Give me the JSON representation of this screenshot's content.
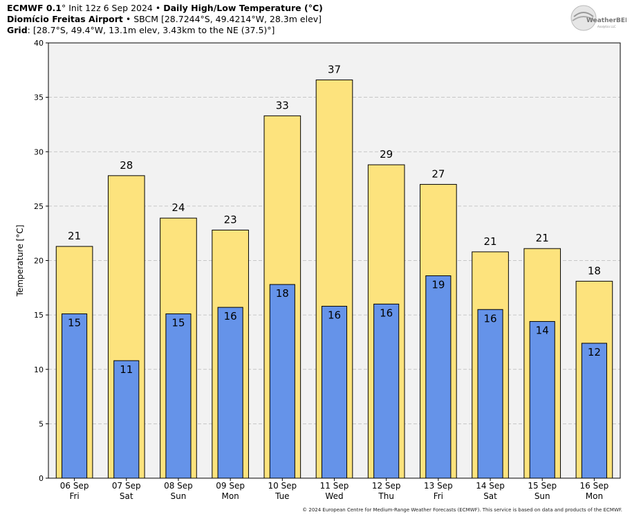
{
  "header": {
    "model": "ECMWF 0.1",
    "deg": "°",
    "init": "Init 12z 6 Sep 2024",
    "bullet": "•",
    "product": "Daily High/Low Temperature (°C)",
    "station_name": "Diomício Freitas Airport",
    "station_info": "SBCM [28.7244°S, 49.4214°W, 28.3m elev]",
    "grid_label": "Grid",
    "grid_info": ": [28.7°S, 49.4°W, 13.1m elev, 3.43km to the NE (37.5)°]"
  },
  "logo": {
    "text": "WeatherBELL",
    "small": "Analytics LLC"
  },
  "footer": "© 2024 European Centre for Medium-Range Weather Forecasts (ECMWF). This service is based on data and products of the ECMWF.",
  "colors": {
    "high": "#fde37d",
    "low": "#6593e9",
    "plot_bg": "#f2f2f2",
    "grid": "#b8b8b8"
  },
  "chart_data": {
    "type": "bar",
    "ylabel": "Temperature [°C]",
    "ylim": [
      0,
      40
    ],
    "yticks": [
      0,
      5,
      10,
      15,
      20,
      25,
      30,
      35,
      40
    ],
    "grid": true,
    "categories": [
      "06 Sep",
      "07 Sep",
      "08 Sep",
      "09 Sep",
      "10 Sep",
      "11 Sep",
      "12 Sep",
      "13 Sep",
      "14 Sep",
      "15 Sep",
      "16 Sep"
    ],
    "weekdays": [
      "Fri",
      "Sat",
      "Sun",
      "Mon",
      "Tue",
      "Wed",
      "Thu",
      "Fri",
      "Sat",
      "Sun",
      "Mon"
    ],
    "series": [
      {
        "name": "High",
        "values": [
          21.3,
          27.8,
          23.9,
          22.8,
          33.3,
          36.6,
          28.8,
          27.0,
          20.8,
          21.1,
          18.1
        ],
        "labels": [
          "21",
          "28",
          "24",
          "23",
          "33",
          "37",
          "29",
          "27",
          "21",
          "21",
          "18"
        ]
      },
      {
        "name": "Low",
        "values": [
          15.1,
          10.8,
          15.1,
          15.7,
          17.8,
          15.8,
          16.0,
          18.6,
          15.5,
          14.4,
          12.4
        ],
        "labels": [
          "15",
          "11",
          "15",
          "16",
          "18",
          "16",
          "16",
          "19",
          "16",
          "14",
          "12"
        ]
      }
    ]
  }
}
